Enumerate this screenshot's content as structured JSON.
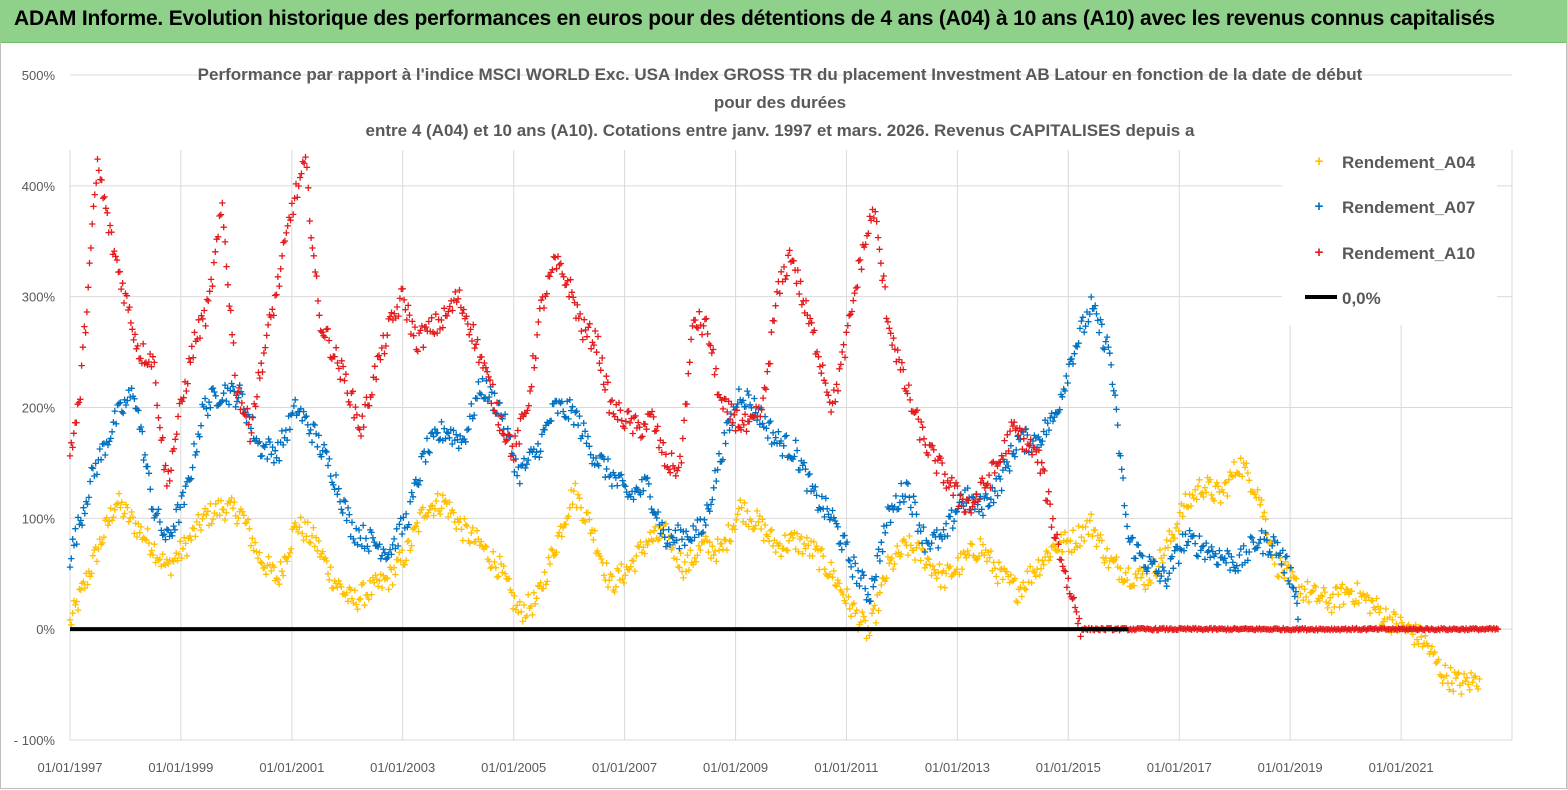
{
  "banner": {
    "title": "ADAM Informe. Evolution historique des performances en euros pour des détentions de 4 ans (A04) à 10 ans (A10) avec les revenus connus capitalisés"
  },
  "colors": {
    "banner_bg": "#8fd18b",
    "A04": "#ffc000",
    "A07": "#0070c0",
    "A10": "#e41a1c",
    "zero_line": "#000000"
  },
  "chart_data": {
    "type": "scatter",
    "title_lines": [
      "Performance par rapport à l'indice MSCI WORLD Exc. USA Index GROSS TR  du placement Investment AB Latour en fonction de la date de début",
      "pour des durées",
      "entre 4 (A04) et 10 ans (A10). Cotations entre janv. 1997 et mars. 2026. Revenus CAPITALISES depuis a"
    ],
    "x_tick_labels": [
      "01/01/1997",
      "01/01/1999",
      "01/01/2001",
      "01/01/2003",
      "01/01/2005",
      "01/01/2007",
      "01/01/2009",
      "01/01/2011",
      "01/01/2013",
      "01/01/2015",
      "01/01/2017",
      "01/01/2019",
      "01/01/2021"
    ],
    "xlim": [
      "1997-01-01",
      "2023-01-01"
    ],
    "y_tick_labels": [
      "- 100%",
      "0%",
      "100%",
      "200%",
      "300%",
      "400%",
      "500%"
    ],
    "ylim": [
      -100,
      500
    ],
    "grid": true,
    "legend_position": "right",
    "series": [
      {
        "name": "Rendement_A04",
        "marker": "plus",
        "color": "#ffc000",
        "dates": [
          "1997-01",
          "1997-06",
          "1997-11",
          "1998-03",
          "1998-07",
          "1998-10",
          "1999-02",
          "1999-06",
          "1999-10",
          "2000-02",
          "2000-06",
          "2000-10",
          "2001-02",
          "2001-06",
          "2001-10",
          "2002-02",
          "2002-06",
          "2002-10",
          "2003-02",
          "2003-06",
          "2003-10",
          "2004-02",
          "2004-06",
          "2004-10",
          "2005-02",
          "2005-06",
          "2005-10",
          "2006-02",
          "2006-06",
          "2006-10",
          "2007-02",
          "2007-06",
          "2007-10",
          "2008-02",
          "2008-06",
          "2008-10",
          "2009-02",
          "2009-06",
          "2009-10",
          "2010-02",
          "2010-06",
          "2010-10",
          "2011-02",
          "2011-06",
          "2011-10",
          "2012-02",
          "2012-06",
          "2012-10",
          "2013-02",
          "2013-06",
          "2013-10",
          "2014-02",
          "2014-06",
          "2014-10",
          "2015-02",
          "2015-06",
          "2015-10",
          "2016-02",
          "2016-06",
          "2016-10",
          "2017-02",
          "2017-06",
          "2017-10",
          "2018-02",
          "2018-06",
          "2018-10",
          "2019-02",
          "2019-06",
          "2019-10",
          "2020-02",
          "2020-06",
          "2020-10",
          "2021-02",
          "2021-06",
          "2021-10",
          "2022-02",
          "2022-06"
        ],
        "values": [
          5,
          60,
          115,
          95,
          75,
          55,
          75,
          100,
          110,
          105,
          65,
          45,
          95,
          80,
          45,
          25,
          35,
          45,
          70,
          110,
          115,
          90,
          75,
          55,
          15,
          25,
          75,
          125,
          90,
          40,
          55,
          80,
          85,
          55,
          75,
          70,
          110,
          95,
          75,
          80,
          70,
          50,
          20,
          -5,
          55,
          75,
          65,
          45,
          60,
          75,
          50,
          35,
          55,
          75,
          80,
          95,
          60,
          50,
          45,
          70,
          110,
          130,
          120,
          150,
          125,
          60,
          40,
          30,
          25,
          35,
          25,
          10,
          0,
          -10,
          -40,
          -50,
          -45
        ]
      },
      {
        "name": "Rendement_A07",
        "marker": "plus",
        "color": "#0070c0",
        "dates": [
          "1997-01",
          "1997-06",
          "1997-11",
          "1998-03",
          "1998-07",
          "1998-10",
          "1999-02",
          "1999-06",
          "1999-10",
          "2000-02",
          "2000-06",
          "2000-10",
          "2001-02",
          "2001-06",
          "2001-10",
          "2002-02",
          "2002-06",
          "2002-10",
          "2003-02",
          "2003-06",
          "2003-10",
          "2004-02",
          "2004-06",
          "2004-10",
          "2005-02",
          "2005-06",
          "2005-10",
          "2006-02",
          "2006-06",
          "2006-10",
          "2007-02",
          "2007-06",
          "2007-10",
          "2008-02",
          "2008-06",
          "2008-10",
          "2009-02",
          "2009-06",
          "2009-10",
          "2010-02",
          "2010-06",
          "2010-10",
          "2011-02",
          "2011-06",
          "2011-10",
          "2012-02",
          "2012-06",
          "2012-10",
          "2013-02",
          "2013-06",
          "2013-10",
          "2014-02",
          "2014-06",
          "2014-10",
          "2015-02",
          "2015-06",
          "2015-10",
          "2016-02",
          "2016-06",
          "2016-10",
          "2017-02",
          "2017-06",
          "2017-10",
          "2018-02",
          "2018-06",
          "2018-10",
          "2019-02",
          "2019-03"
        ],
        "values": [
          65,
          140,
          190,
          215,
          110,
          80,
          120,
          200,
          215,
          210,
          165,
          160,
          200,
          175,
          140,
          90,
          80,
          70,
          100,
          160,
          180,
          170,
          220,
          200,
          140,
          160,
          200,
          195,
          160,
          140,
          120,
          130,
          80,
          85,
          90,
          160,
          215,
          195,
          170,
          160,
          120,
          100,
          60,
          30,
          100,
          130,
          80,
          80,
          120,
          110,
          130,
          170,
          170,
          190,
          250,
          290,
          250,
          80,
          60,
          45,
          80,
          75,
          65,
          60,
          80,
          75,
          40,
          0
        ]
      },
      {
        "name": "Rendement_A10",
        "marker": "plus",
        "color": "#e41a1c",
        "dates": [
          "1997-01",
          "1997-03",
          "1997-05",
          "1997-07",
          "1997-10",
          "1998-01",
          "1998-04",
          "1998-07",
          "1998-10",
          "1999-01",
          "1999-04",
          "1999-07",
          "1999-10",
          "2000-01",
          "2000-04",
          "2000-07",
          "2000-10",
          "2001-01",
          "2001-04",
          "2001-07",
          "2001-10",
          "2002-01",
          "2002-04",
          "2002-07",
          "2002-10",
          "2003-01",
          "2003-04",
          "2003-07",
          "2003-10",
          "2004-01",
          "2004-04",
          "2004-07",
          "2004-10",
          "2005-01",
          "2005-04",
          "2005-07",
          "2005-10",
          "2006-01",
          "2006-04",
          "2006-07",
          "2006-10",
          "2007-01",
          "2007-04",
          "2007-07",
          "2007-10",
          "2008-01",
          "2008-04",
          "2008-07",
          "2008-10",
          "2009-01",
          "2009-04",
          "2009-07",
          "2009-10",
          "2010-01",
          "2010-04",
          "2010-07",
          "2010-10",
          "2011-01",
          "2011-04",
          "2011-07",
          "2011-10",
          "2012-01",
          "2012-04",
          "2012-07",
          "2012-10",
          "2013-01",
          "2013-04",
          "2013-07",
          "2013-10",
          "2014-01",
          "2014-04",
          "2014-07",
          "2014-10",
          "2015-01",
          "2015-04",
          "2015-07",
          "2015-10",
          "2016-01",
          "2016-04",
          "2016-07",
          "2016-10",
          "2017-01",
          "2017-04",
          "2017-07",
          "2017-10",
          "2018-01",
          "2018-04",
          "2018-07",
          "2018-10",
          "2019-01",
          "2019-04",
          "2019-07",
          "2019-10",
          "2020-01",
          "2020-04",
          "2020-07",
          "2020-10",
          "2021-01",
          "2021-04",
          "2021-07",
          "2021-10",
          "2022-01",
          "2022-04",
          "2022-07",
          "2022-10"
        ],
        "values": [
          160,
          200,
          310,
          420,
          350,
          300,
          250,
          245,
          130,
          200,
          260,
          290,
          380,
          220,
          180,
          250,
          310,
          380,
          420,
          280,
          250,
          220,
          180,
          230,
          270,
          300,
          260,
          270,
          280,
          300,
          270,
          230,
          190,
          160,
          200,
          290,
          330,
          310,
          270,
          260,
          200,
          190,
          180,
          190,
          150,
          145,
          280,
          270,
          200,
          190,
          180,
          200,
          300,
          340,
          290,
          250,
          200,
          260,
          330,
          380,
          280,
          230,
          190,
          160,
          140,
          120,
          110,
          130,
          150,
          180,
          170,
          150,
          90,
          40,
          0,
          0,
          0,
          0,
          0,
          0,
          0,
          0,
          0,
          0,
          0,
          0,
          0,
          0,
          0,
          0,
          0,
          0,
          0,
          0,
          0,
          0,
          0,
          0,
          0,
          0,
          0,
          0,
          0,
          0,
          0
        ]
      },
      {
        "name": "0,0%",
        "marker": "line",
        "color": "#000000",
        "dates": [
          "1997-01-01",
          "2016-02-01"
        ],
        "values": [
          0,
          0
        ]
      }
    ]
  }
}
